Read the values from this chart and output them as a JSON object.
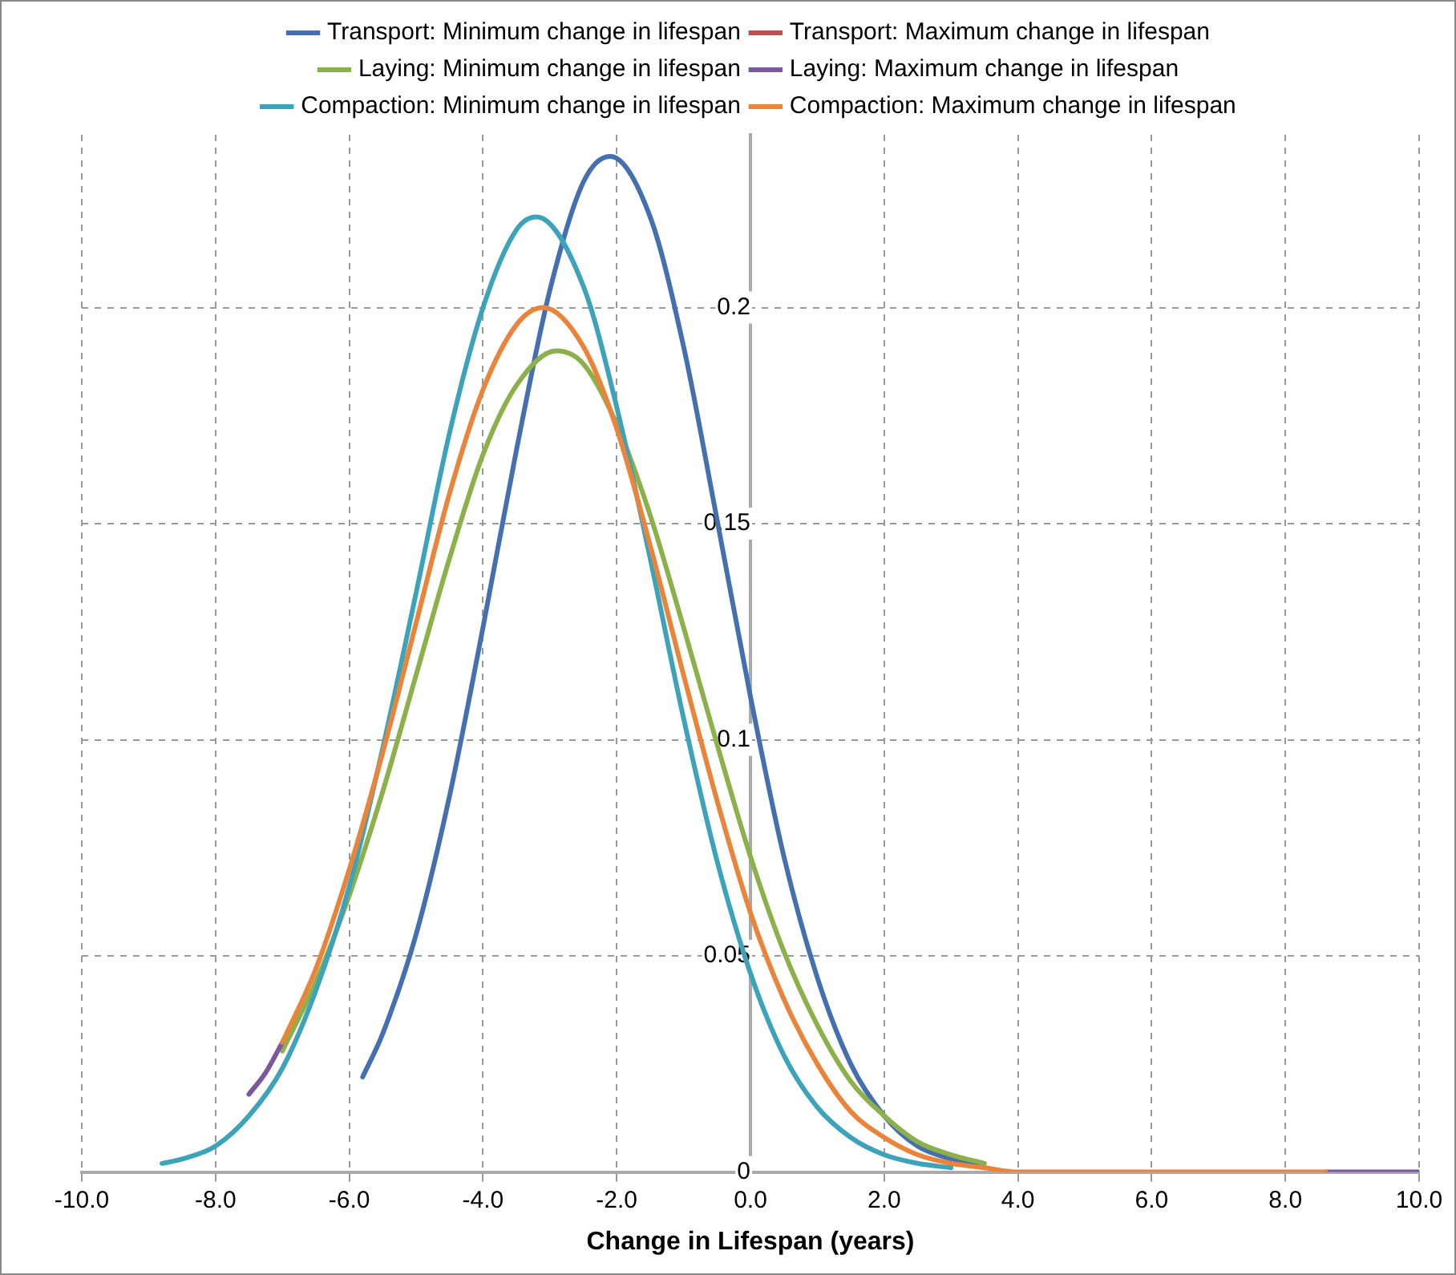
{
  "chart_data": {
    "type": "line",
    "xlabel": "Change in Lifespan (years)",
    "xlim": [
      -10,
      10
    ],
    "ylim": [
      0,
      0.24
    ],
    "xticks": [
      {
        "value": -10,
        "label": "-10.0"
      },
      {
        "value": -8,
        "label": "-8.0"
      },
      {
        "value": -6,
        "label": "-6.0"
      },
      {
        "value": -4,
        "label": "-4.0"
      },
      {
        "value": -2,
        "label": "-2.0"
      },
      {
        "value": 0,
        "label": "0.0"
      },
      {
        "value": 2,
        "label": "2.0"
      },
      {
        "value": 4,
        "label": "4.0"
      },
      {
        "value": 6,
        "label": "6.0"
      },
      {
        "value": 8,
        "label": "8.0"
      },
      {
        "value": 10,
        "label": "10.0"
      }
    ],
    "yticks": [
      0,
      0.05,
      0.1,
      0.15,
      0.2
    ],
    "grid": true,
    "legend": "top",
    "marker": "none",
    "line_style": "solid",
    "series": [
      {
        "name": "Transport: Minimum change in lifespan",
        "color": "#4470b0",
        "x": [
          -5.8,
          -5.5,
          -5.0,
          -4.5,
          -4.0,
          -3.5,
          -3.0,
          -2.5,
          -2.1,
          -1.5,
          -1.0,
          -0.5,
          0,
          0.5,
          1.0,
          1.5,
          2.0,
          2.5,
          3.0,
          3.5
        ],
        "values": [
          0.022,
          0.032,
          0.055,
          0.087,
          0.126,
          0.167,
          0.204,
          0.229,
          0.235,
          0.221,
          0.191,
          0.151,
          0.11,
          0.073,
          0.045,
          0.025,
          0.013,
          0.006,
          0.003,
          0.001
        ]
      },
      {
        "name": "Transport: Maximum change in lifespan",
        "color": "#c0504d"
      },
      {
        "name": "Laying: Minimum change in lifespan",
        "color": "#8cb04a",
        "x": [
          -7.0,
          -6.5,
          -6.0,
          -5.5,
          -5.0,
          -4.5,
          -4.0,
          -3.5,
          -2.9,
          -2.5,
          -2.0,
          -1.5,
          -1.0,
          -0.5,
          0,
          0.5,
          1.0,
          1.5,
          2.0,
          2.5,
          3.0,
          3.5
        ],
        "values": [
          0.028,
          0.044,
          0.064,
          0.088,
          0.115,
          0.142,
          0.166,
          0.182,
          0.19,
          0.187,
          0.173,
          0.152,
          0.126,
          0.099,
          0.073,
          0.051,
          0.034,
          0.021,
          0.013,
          0.007,
          0.004,
          0.002
        ]
      },
      {
        "name": "Laying: Maximum change in lifespan",
        "color": "#7a5a9c",
        "x": [
          -7.5,
          -7.25,
          -7.0,
          0,
          8.6,
          10
        ],
        "values": [
          0.018,
          0.023,
          0.03,
          null,
          0,
          0
        ]
      },
      {
        "name": "Compaction: Minimum change in lifespan",
        "color": "#3ca3bb",
        "x": [
          -8.8,
          -8.5,
          -8.0,
          -7.5,
          -7.0,
          -6.5,
          -6.0,
          -5.5,
          -5.0,
          -4.5,
          -4.0,
          -3.5,
          -3.2,
          -2.5,
          -2.0,
          -1.5,
          -1.0,
          -0.5,
          0,
          0.5,
          1.0,
          1.5,
          2.0,
          2.5,
          3.0
        ],
        "values": [
          0.002,
          0.003,
          0.006,
          0.013,
          0.024,
          0.042,
          0.066,
          0.098,
          0.134,
          0.171,
          0.2,
          0.218,
          0.221,
          0.205,
          0.177,
          0.142,
          0.105,
          0.072,
          0.046,
          0.027,
          0.015,
          0.008,
          0.004,
          0.002,
          0.001
        ]
      },
      {
        "name": "Compaction: Maximum change in lifespan",
        "color": "#e9843a",
        "x": [
          -7.0,
          -6.5,
          -6.0,
          -5.5,
          -5.0,
          -4.5,
          -4.0,
          -3.5,
          -3.1,
          -2.5,
          -2.0,
          -1.5,
          -1.0,
          -0.5,
          0,
          0.5,
          1.0,
          1.5,
          2.0,
          2.5,
          3.0,
          3.5,
          4.0,
          5.0,
          8.6
        ],
        "values": [
          0.03,
          0.047,
          0.07,
          0.097,
          0.127,
          0.157,
          0.181,
          0.196,
          0.2,
          0.191,
          0.172,
          0.145,
          0.115,
          0.086,
          0.06,
          0.04,
          0.025,
          0.014,
          0.008,
          0.004,
          0.002,
          0.001,
          0,
          0,
          0
        ]
      }
    ]
  }
}
